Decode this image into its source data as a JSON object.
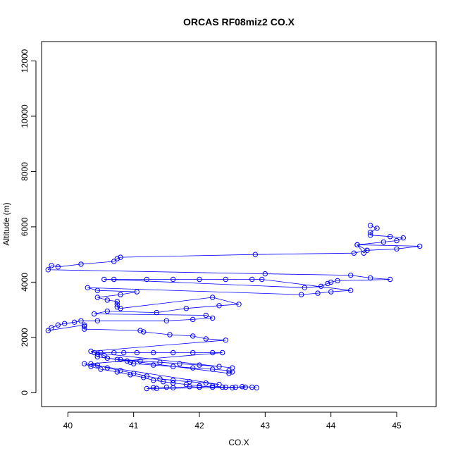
{
  "chart_data": {
    "type": "line",
    "title": "ORCAS RF08miz2 CO.X",
    "xlabel": "CO.X",
    "ylabel": "Altitude (m)",
    "xlim": [
      39.6,
      45.6
    ],
    "ylim": [
      -500,
      12700
    ],
    "x_ticks": [
      40,
      41,
      42,
      43,
      44,
      45
    ],
    "y_ticks": [
      0,
      2000,
      4000,
      6000,
      8000,
      10000,
      12000
    ],
    "x_tick_labels": [
      "40",
      "41",
      "42",
      "43",
      "44",
      "45"
    ],
    "y_tick_labels": [
      "0",
      "2000",
      "4000",
      "6000",
      "8000",
      "10000",
      "12000"
    ],
    "grid": false,
    "legend": "none",
    "series_color": "#0000ff",
    "marker": "open-circle",
    "series": [
      {
        "x": [
          44.6,
          44.7,
          44.6,
          44.6,
          44.9,
          45.1,
          45.0,
          44.8,
          44.4,
          44.55,
          44.5,
          44.4,
          45.35,
          45.0,
          44.55,
          44.35,
          42.85,
          40.8,
          40.75,
          40.7,
          40.2,
          39.85,
          39.75,
          39.7,
          43.0,
          44.3,
          44.6,
          44.9,
          44.1,
          44.0,
          43.95,
          43.85,
          43.6,
          40.55,
          40.7,
          41.2,
          41.6,
          42.0,
          42.4,
          42.8,
          42.95,
          44.3,
          44.0,
          43.8,
          43.55,
          40.3,
          40.45,
          41.05,
          40.8,
          40.45,
          40.6,
          40.75,
          40.75,
          40.75,
          40.8,
          42.2,
          42.6,
          42.3,
          41.8,
          41.35,
          40.6,
          40.4,
          42.1,
          42.2,
          41.9,
          41.5,
          40.45,
          40.2,
          40.1,
          39.95,
          39.85,
          39.75,
          39.7,
          40.25,
          40.25,
          40.25,
          41.1,
          41.15,
          41.55,
          41.9,
          42.1,
          42.4,
          40.35,
          40.45,
          40.55,
          40.6,
          40.75,
          40.9,
          40.95,
          41.0,
          41.3,
          41.6,
          41.9,
          42.2,
          42.45,
          42.5,
          42.45,
          40.45,
          40.6,
          40.8,
          41.1,
          41.4,
          41.7,
          42.0,
          42.3,
          42.5,
          40.4,
          40.5,
          40.7,
          40.85,
          41.05,
          41.3,
          41.6,
          41.9,
          42.2,
          42.35,
          40.35,
          40.45,
          40.6,
          40.8,
          41.0,
          41.2,
          41.4,
          41.6,
          41.85,
          42.1,
          42.3,
          40.25,
          40.35,
          40.5,
          40.75,
          40.95,
          41.15,
          41.3,
          41.45,
          41.6,
          41.8,
          42.0,
          42.2,
          42.4,
          42.55,
          42.7,
          41.2,
          41.3,
          41.35,
          41.5,
          41.6,
          41.85,
          42.0,
          42.2,
          42.35,
          42.5,
          42.65,
          42.8,
          42.87
        ],
        "y": [
          6050,
          5950,
          5800,
          5700,
          5650,
          5600,
          5500,
          5450,
          5350,
          5150,
          5050,
          5350,
          5300,
          5200,
          5150,
          5050,
          5000,
          4900,
          4850,
          4750,
          4650,
          4550,
          4600,
          4450,
          4300,
          4250,
          4150,
          4100,
          4050,
          4000,
          3950,
          3850,
          3800,
          4100,
          4100,
          4100,
          4100,
          4100,
          4100,
          4100,
          4100,
          3700,
          3650,
          3600,
          3550,
          3800,
          3700,
          3650,
          3550,
          3450,
          3350,
          3300,
          3200,
          3100,
          3050,
          3450,
          3200,
          3150,
          3050,
          2900,
          2950,
          2850,
          2800,
          2700,
          2650,
          2600,
          2600,
          2600,
          2550,
          2500,
          2450,
          2350,
          2250,
          2450,
          2400,
          2300,
          2250,
          2200,
          2100,
          2050,
          1950,
          1900,
          1500,
          1400,
          1350,
          1250,
          1200,
          1150,
          1100,
          1050,
          1000,
          950,
          900,
          850,
          800,
          750,
          700,
          1300,
          1250,
          1200,
          1150,
          1100,
          1050,
          1000,
          950,
          900,
          1450,
          1450,
          1450,
          1450,
          1450,
          1450,
          1450,
          1450,
          1450,
          1450,
          1050,
          1000,
          900,
          800,
          700,
          600,
          500,
          450,
          400,
          350,
          300,
          1050,
          950,
          850,
          750,
          650,
          550,
          450,
          400,
          350,
          300,
          250,
          200,
          200,
          200,
          200,
          150,
          180,
          160,
          200,
          180,
          220,
          200,
          250,
          200,
          180,
          220,
          200,
          180
        ]
      }
    ]
  }
}
